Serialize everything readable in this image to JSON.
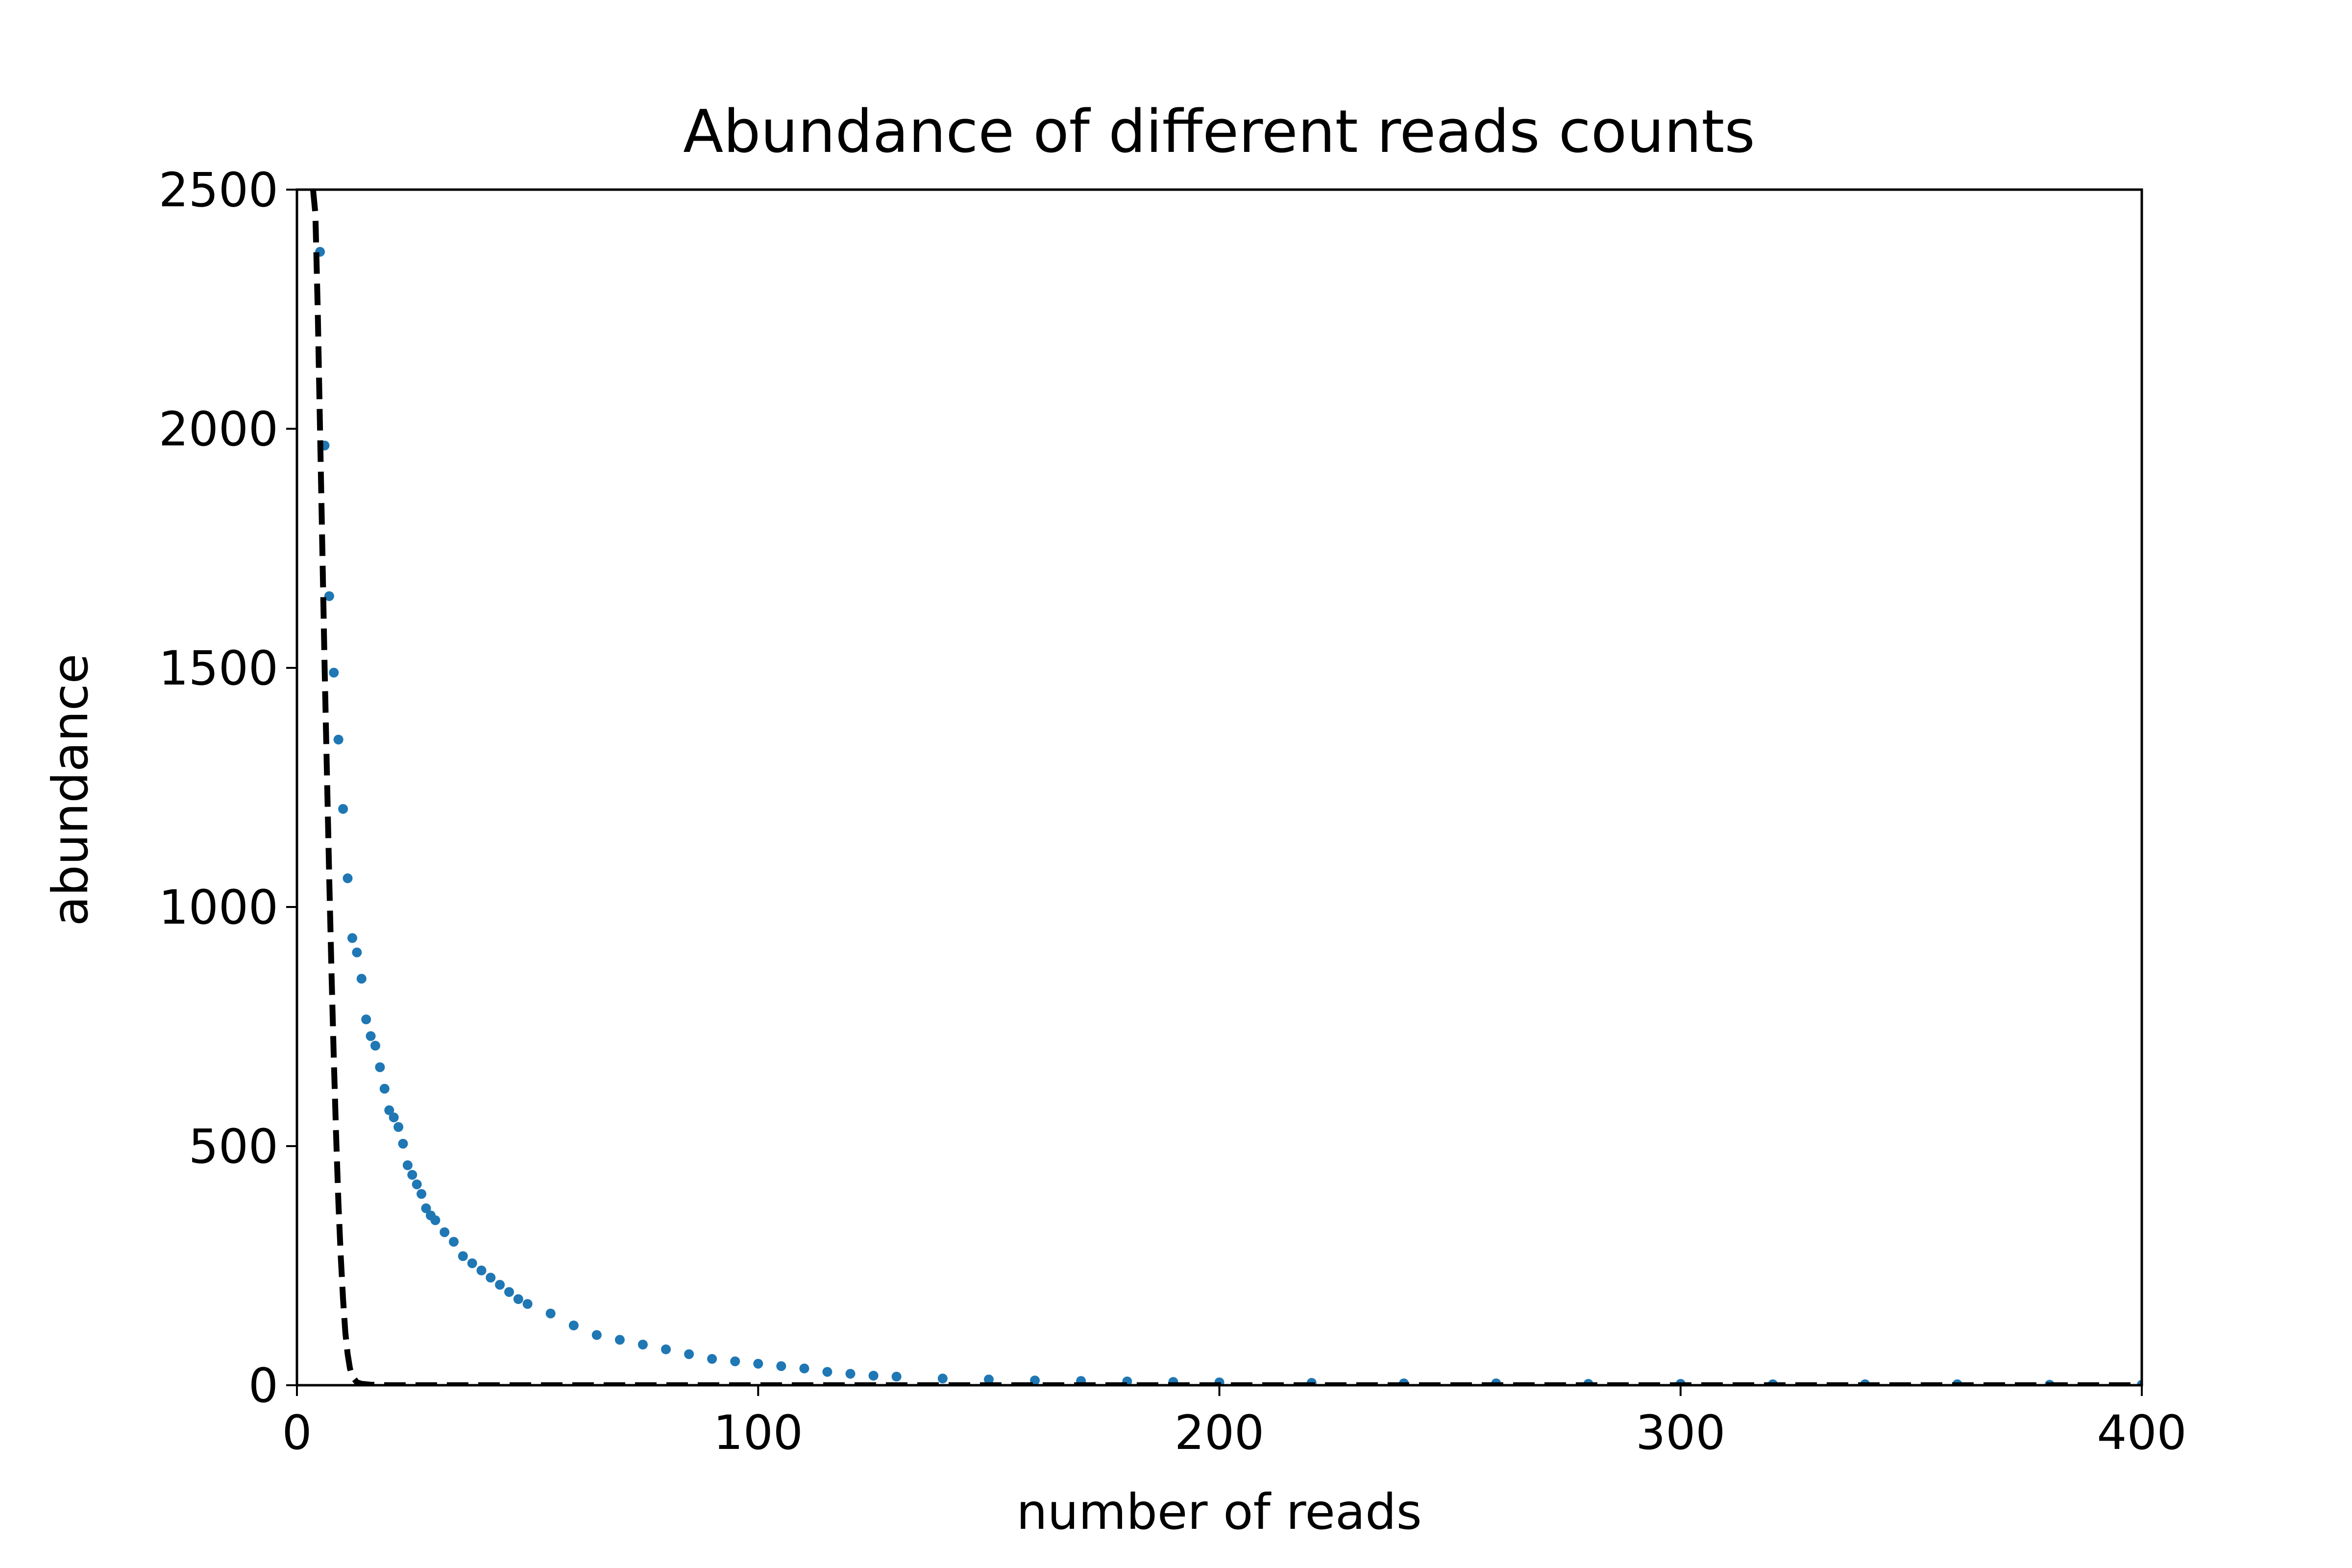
{
  "chart_data": {
    "type": "scatter",
    "title": "Abundance of different reads counts",
    "xlabel": "number of reads",
    "ylabel": "abundance",
    "xlim": [
      0,
      400
    ],
    "ylim": [
      0,
      2500
    ],
    "xticks": [
      0,
      100,
      200,
      300,
      400
    ],
    "yticks": [
      0,
      500,
      1000,
      1500,
      2000,
      2500
    ],
    "grid": false,
    "colors": {
      "points": "#1f77b4",
      "fit_line": "#000000"
    },
    "series": [
      {
        "kind": "points",
        "x": [
          5,
          6,
          7,
          8,
          9,
          10,
          11,
          12,
          13,
          14,
          15,
          16,
          17,
          18,
          19,
          20,
          21,
          22,
          23,
          24,
          25,
          26,
          27,
          28,
          29,
          30,
          32,
          34,
          36,
          38,
          40,
          42,
          44,
          46,
          48,
          50,
          55,
          60,
          65,
          70,
          75,
          80,
          85,
          90,
          95,
          100,
          105,
          110,
          115,
          120,
          125,
          130,
          140,
          150,
          160,
          170,
          180,
          190,
          200,
          220,
          240,
          260,
          280,
          300,
          320,
          340,
          360,
          380,
          400
        ],
        "y": [
          2370,
          1965,
          1650,
          1490,
          1350,
          1205,
          1060,
          935,
          905,
          850,
          765,
          730,
          710,
          665,
          620,
          575,
          560,
          540,
          505,
          460,
          440,
          420,
          400,
          370,
          355,
          345,
          320,
          300,
          270,
          255,
          240,
          225,
          210,
          195,
          180,
          170,
          150,
          125,
          105,
          95,
          85,
          75,
          65,
          55,
          50,
          45,
          40,
          35,
          28,
          24,
          20,
          18,
          14,
          12,
          10,
          9,
          8,
          7,
          6,
          5,
          4,
          4,
          3,
          3,
          2,
          2,
          2,
          1,
          1
        ]
      },
      {
        "kind": "dashed-line",
        "x": [
          3.5,
          4,
          4.5,
          5,
          5.5,
          6,
          6.5,
          7,
          7.5,
          8,
          8.5,
          9,
          9.5,
          10,
          10.5,
          11,
          11.5,
          12,
          13,
          14,
          16,
          20,
          40,
          100,
          200,
          300,
          400
        ],
        "y": [
          2500,
          2450,
          2250,
          2000,
          1750,
          1500,
          1280,
          1060,
          860,
          680,
          520,
          380,
          270,
          180,
          110,
          65,
          35,
          18,
          6,
          3,
          1,
          0,
          0,
          0,
          0,
          0,
          0
        ]
      }
    ]
  }
}
